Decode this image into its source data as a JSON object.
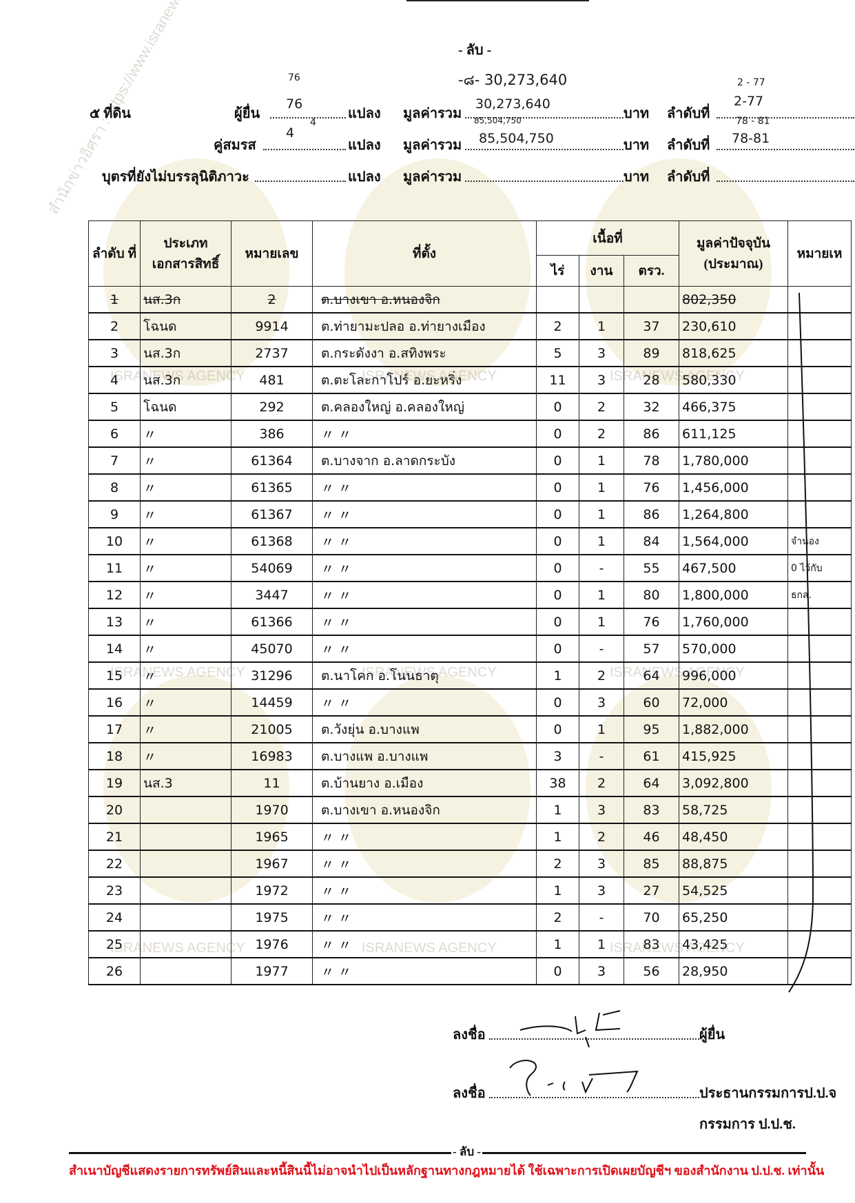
{
  "header": {
    "top_secret": "- ลับ -",
    "page_total_note": "-๘- 30,273,640",
    "section_label": "๕ ที่ดิน",
    "rows": [
      {
        "label": "ผู้ยื่น",
        "plots": "76",
        "plots_note": "76",
        "unit_plots": "แปลง",
        "total_label": "มูลค่ารวม",
        "total": "30,273,640",
        "unit_baht": "บาท",
        "order_label": "ลำดับที่",
        "order": "2-77",
        "order_note": "2 - 77"
      },
      {
        "label": "คู่สมรส",
        "plots": "4",
        "plots_note": "4",
        "unit_plots": "แปลง",
        "total_label": "มูลค่ารวม",
        "total": "85,504,750",
        "total_note": "85,504,750",
        "unit_baht": "บาท",
        "order_label": "ลำดับที่",
        "order": "78-81",
        "order_note": "78 - 81"
      },
      {
        "label": "บุตรที่ยังไม่บรรลุนิติภาวะ",
        "plots": "",
        "unit_plots": "แปลง",
        "total_label": "มูลค่ารวม",
        "total": "",
        "unit_baht": "บาท",
        "order_label": "ลำดับที่",
        "order": ""
      }
    ]
  },
  "table": {
    "headers": {
      "no": "ลำดับ ที่",
      "doc_type": "ประเภท เอกสารสิทธิ์",
      "number": "หมายเลข",
      "location": "ที่ตั้ง",
      "area": "เนื้อที่",
      "rai": "ไร่",
      "ngan": "งาน",
      "wa": "ตรว.",
      "value": "มูลค่าปัจจุบัน (ประมาณ)",
      "note": "หมายเห"
    },
    "rows": [
      {
        "no": "1",
        "type": "นส.3ก",
        "number": "2",
        "location": "ต.บางเขา อ.หนองจิก",
        "rai": "",
        "ngan": "",
        "wa": "",
        "value": "802,350",
        "note": "",
        "struck": true
      },
      {
        "no": "2",
        "type": "โฉนด",
        "number": "9914",
        "location": "ต.ท่ายามะปลอ อ.ท่ายางเมือง",
        "rai": "2",
        "ngan": "1",
        "wa": "37",
        "value": "230,610",
        "note": ""
      },
      {
        "no": "3",
        "type": "นส.3ก",
        "number": "2737",
        "location": "ต.กระดังงา อ.สทิงพระ",
        "rai": "5",
        "ngan": "3",
        "wa": "89",
        "value": "818,625",
        "note": ""
      },
      {
        "no": "4",
        "type": "นส.3ก",
        "number": "481",
        "location": "ต.ตะโละกาโปร์ อ.ยะหริ่ง",
        "rai": "11",
        "ngan": "3",
        "wa": "28",
        "value": "580,330",
        "note": ""
      },
      {
        "no": "5",
        "type": "โฉนด",
        "number": "292",
        "location": "ต.คลองใหญ่ อ.คลองใหญ่",
        "rai": "0",
        "ngan": "2",
        "wa": "32",
        "value": "466,375",
        "note": ""
      },
      {
        "no": "6",
        "type": "〃",
        "number": "386",
        "location": "〃          〃",
        "rai": "0",
        "ngan": "2",
        "wa": "86",
        "value": "611,125",
        "note": ""
      },
      {
        "no": "7",
        "type": "〃",
        "number": "61364",
        "location": "ต.บางจาก อ.ลาดกระบัง",
        "rai": "0",
        "ngan": "1",
        "wa": "78",
        "value": "1,780,000",
        "note": ""
      },
      {
        "no": "8",
        "type": "〃",
        "number": "61365",
        "location": "〃          〃",
        "rai": "0",
        "ngan": "1",
        "wa": "76",
        "value": "1,456,000",
        "note": ""
      },
      {
        "no": "9",
        "type": "〃",
        "number": "61367",
        "location": "〃          〃",
        "rai": "0",
        "ngan": "1",
        "wa": "86",
        "value": "1,264,800",
        "note": ""
      },
      {
        "no": "10",
        "type": "〃",
        "number": "61368",
        "location": "〃          〃",
        "rai": "0",
        "ngan": "1",
        "wa": "84",
        "value": "1,564,000",
        "note": "จำนอง"
      },
      {
        "no": "11",
        "type": "〃",
        "number": "54069",
        "location": "〃          〃",
        "rai": "0",
        "ngan": "-",
        "wa": "55",
        "value": "467,500",
        "note": "0 ไว้กับ"
      },
      {
        "no": "12",
        "type": "〃",
        "number": "3447",
        "location": "〃          〃",
        "rai": "0",
        "ngan": "1",
        "wa": "80",
        "value": "1,800,000",
        "note": "ธกส."
      },
      {
        "no": "13",
        "type": "〃",
        "number": "61366",
        "location": "〃          〃",
        "rai": "0",
        "ngan": "1",
        "wa": "76",
        "value": "1,760,000",
        "note": ""
      },
      {
        "no": "14",
        "type": "〃",
        "number": "45070",
        "location": "〃          〃",
        "rai": "0",
        "ngan": "-",
        "wa": "57",
        "value": "570,000",
        "note": ""
      },
      {
        "no": "15",
        "type": "〃",
        "number": "31296",
        "location": "ต.นาโคก อ.โนนธาตุ",
        "rai": "1",
        "ngan": "2",
        "wa": "64",
        "value": "996,000",
        "note": ""
      },
      {
        "no": "16",
        "type": "〃",
        "number": "14459",
        "location": "〃          〃",
        "rai": "0",
        "ngan": "3",
        "wa": "60",
        "value": "72,000",
        "note": ""
      },
      {
        "no": "17",
        "type": "〃",
        "number": "21005",
        "location": "ต.วังยุ่น อ.บางแพ",
        "rai": "0",
        "ngan": "1",
        "wa": "95",
        "value": "1,882,000",
        "note": ""
      },
      {
        "no": "18",
        "type": "〃",
        "number": "16983",
        "location": "ต.บางแพ อ.บางแพ",
        "rai": "3",
        "ngan": "-",
        "wa": "61",
        "value": "415,925",
        "note": ""
      },
      {
        "no": "19",
        "type": "นส.3",
        "number": "11",
        "location": "ต.บ้านยาง อ.เมือง",
        "rai": "38",
        "ngan": "2",
        "wa": "64",
        "value": "3,092,800",
        "note": ""
      },
      {
        "no": "20",
        "type": "",
        "number": "1970",
        "location": "ต.บางเขา อ.หนองจิก",
        "rai": "1",
        "ngan": "3",
        "wa": "83",
        "value": "58,725",
        "note": ""
      },
      {
        "no": "21",
        "type": "",
        "number": "1965",
        "location": "〃          〃",
        "rai": "1",
        "ngan": "2",
        "wa": "46",
        "value": "48,450",
        "note": ""
      },
      {
        "no": "22",
        "type": "",
        "number": "1967",
        "location": "〃          〃",
        "rai": "2",
        "ngan": "3",
        "wa": "85",
        "value": "88,875",
        "note": ""
      },
      {
        "no": "23",
        "type": "",
        "number": "1972",
        "location": "〃          〃",
        "rai": "1",
        "ngan": "3",
        "wa": "27",
        "value": "54,525",
        "note": ""
      },
      {
        "no": "24",
        "type": "",
        "number": "1975",
        "location": "〃          〃",
        "rai": "2",
        "ngan": "-",
        "wa": "70",
        "value": "65,250",
        "note": ""
      },
      {
        "no": "25",
        "type": "",
        "number": "1976",
        "location": "〃          〃",
        "rai": "1",
        "ngan": "1",
        "wa": "83",
        "value": "43,425",
        "note": ""
      },
      {
        "no": "26",
        "type": "",
        "number": "1977",
        "location": "〃          〃",
        "rai": "0",
        "ngan": "3",
        "wa": "56",
        "value": "28,950",
        "note": ""
      }
    ]
  },
  "signatures": {
    "sign_label": "ลงชื่อ",
    "filer_role": "ผู้ยื่น",
    "chair_role": "ประธานกรรมการป.ป.จ",
    "committee_role": "กรรมการ ป.ป.ช."
  },
  "footer": {
    "top_secret": "- ลับ -",
    "disclaimer": "สำเนาบัญชีแสดงรายการทรัพย์สินและหนี้สินนี้ไม่อาจนำไปเป็นหลักฐานทางกฎหมายได้ ใช้เฉพาะการเปิดเผยบัญชีฯ ของสำนักงาน ป.ป.ช. เท่านั้น",
    "disclaimer_color": "#e0101a"
  },
  "watermark": {
    "agency": "ISRANEWS AGENCY",
    "url": "สำนักข่าวอิศรา : https://www.isranews.org"
  }
}
